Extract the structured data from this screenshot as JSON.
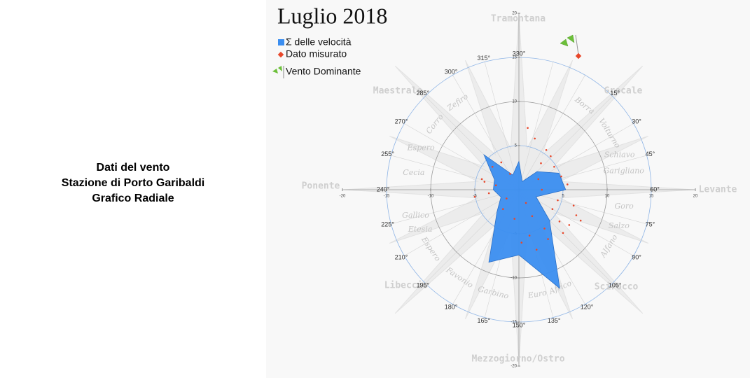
{
  "sidebar": {
    "lines": [
      "Dati del vento",
      "Stazione di Porto Garibaldi",
      "Grafico Radiale"
    ]
  },
  "chart_data": {
    "type": "radial",
    "title": "Luglio  2018",
    "angles": [
      0,
      22.5,
      45,
      67.5,
      90,
      112.5,
      135,
      157.5,
      180,
      202.5,
      225,
      247.5,
      270,
      292.5,
      315,
      337.5
    ],
    "series": [
      {
        "name": "Σ delle velocità",
        "color": "#3b8ef0",
        "values": [
          3.2,
          1.0,
          2.9,
          4.9,
          5.3,
          2.1,
          4.9,
          12.1,
          7.4,
          8.9,
          3.5,
          2.2,
          2.9,
          3.0,
          5.6,
          1.8
        ]
      },
      {
        "name": "Dato misurato",
        "color": "#e8472a",
        "x": [
          2.5,
          3.1,
          4.0,
          4.8,
          5.5,
          1.8,
          2.2,
          3.6,
          6.2,
          0.8,
          1.5,
          2.9,
          3.8,
          4.6,
          5.7,
          6.5,
          1.2,
          -0.5,
          -1.4,
          -2.6,
          -3.4,
          -4.2,
          -5.0,
          -3.0,
          -2.0,
          -1.0,
          0.3,
          2.0,
          3.3,
          4.4,
          5.0,
          1.0,
          -1.8,
          -3.9,
          2.6,
          7.0
        ],
        "y": [
          3.0,
          4.5,
          2.6,
          1.5,
          0.6,
          5.8,
          1.2,
          3.8,
          -1.8,
          -1.5,
          -3.0,
          -4.4,
          -2.2,
          -3.6,
          -4.0,
          -2.9,
          -5.2,
          -3.3,
          -1.0,
          0.5,
          -0.4,
          1.2,
          -0.8,
          2.6,
          3.1,
          1.8,
          -6.0,
          -6.8,
          -5.6,
          -1.2,
          -4.9,
          7.0,
          -2.2,
          0.9,
          0.0,
          -3.5
        ]
      }
    ],
    "legend_extra": "Vento Dominante",
    "xlim": [
      -20,
      20
    ],
    "ylim": [
      -20,
      20
    ],
    "xticks": [
      -20,
      -15,
      -10,
      -5,
      5,
      10,
      15,
      20
    ],
    "yticks": [
      -20,
      -15,
      -10,
      -5,
      5,
      10,
      15,
      20
    ],
    "direction_labels": [
      {
        "value": 330,
        "label": "330°"
      },
      {
        "value": 15,
        "label": "15°"
      },
      {
        "value": 30,
        "label": "30°"
      },
      {
        "value": 45,
        "label": "45°"
      },
      {
        "value": 60,
        "label": "60°"
      },
      {
        "value": 75,
        "label": "75°"
      },
      {
        "value": 90,
        "label": "90°"
      },
      {
        "value": 105,
        "label": "105°"
      },
      {
        "value": 120,
        "label": "120°"
      },
      {
        "value": 135,
        "label": "135°"
      },
      {
        "value": 150,
        "label": "150°"
      },
      {
        "value": 165,
        "label": "165°"
      },
      {
        "value": 180,
        "label": "180°"
      },
      {
        "value": 195,
        "label": "195°"
      },
      {
        "value": 210,
        "label": "210°"
      },
      {
        "value": 225,
        "label": "225°"
      },
      {
        "value": 240,
        "label": "240°"
      },
      {
        "value": 255,
        "label": "255°"
      },
      {
        "value": 270,
        "label": "270°"
      },
      {
        "value": 285,
        "label": "285°"
      },
      {
        "value": 300,
        "label": "300°"
      },
      {
        "value": 315,
        "label": "315°"
      }
    ],
    "main_winds": [
      "Tramontana",
      "Grecale",
      "Levante",
      "Scirocco",
      "Mezzogiorno/Ostro",
      "Libeccio",
      "Ponente",
      "Maestrale"
    ],
    "minor_winds": [
      "Zefiro",
      "Corro",
      "Espero",
      "Cecia",
      "Gallico",
      "Etesia",
      "Espero",
      "Favonio",
      "Garbino",
      "Euro",
      "Africo",
      "Alfano",
      "Salzo",
      "Goro",
      "Garigliano",
      "Schiavo",
      "Volturno",
      "Borra"
    ]
  }
}
